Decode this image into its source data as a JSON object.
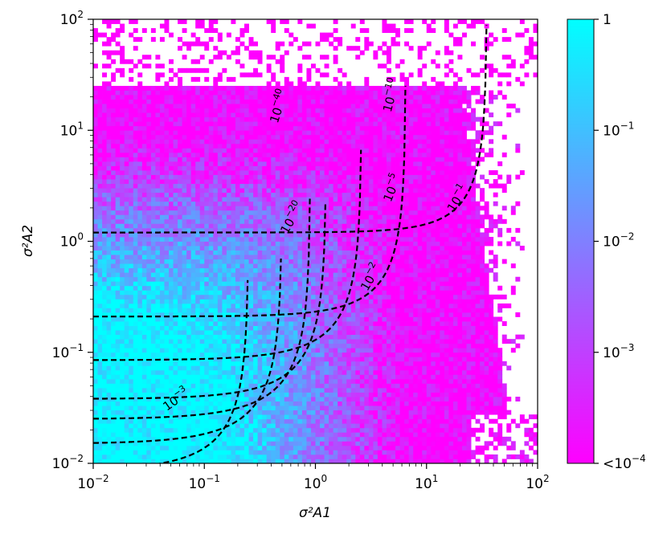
{
  "chart_data": {
    "type": "heatmap",
    "x_axis": {
      "label": "σ²A1",
      "scale": "log",
      "range": [
        0.01,
        100
      ],
      "ticks": [
        {
          "value": 0.01,
          "base": "10",
          "exp": "−2"
        },
        {
          "value": 0.1,
          "base": "10",
          "exp": "−1"
        },
        {
          "value": 1,
          "base": "10",
          "exp": "0"
        },
        {
          "value": 10,
          "base": "10",
          "exp": "1"
        },
        {
          "value": 100,
          "base": "10",
          "exp": "2"
        }
      ]
    },
    "y_axis": {
      "label": "σ²A2",
      "scale": "log",
      "range": [
        0.01,
        100
      ],
      "ticks": [
        {
          "value": 0.01,
          "base": "10",
          "exp": "−2"
        },
        {
          "value": 0.1,
          "base": "10",
          "exp": "−1"
        },
        {
          "value": 1,
          "base": "10",
          "exp": "0"
        },
        {
          "value": 10,
          "base": "10",
          "exp": "1"
        },
        {
          "value": 100,
          "base": "10",
          "exp": "2"
        }
      ]
    },
    "colorbar": {
      "scale": "log",
      "range": [
        0.0001,
        1
      ],
      "color_low": "#ff00ff",
      "color_high": "#00ffff",
      "ticks": [
        {
          "value": 1,
          "text": "1",
          "base": "",
          "exp": ""
        },
        {
          "value": 0.1,
          "text": "",
          "base": "10",
          "exp": "−1"
        },
        {
          "value": 0.01,
          "text": "",
          "base": "10",
          "exp": "−2"
        },
        {
          "value": 0.001,
          "text": "",
          "base": "10",
          "exp": "−3"
        },
        {
          "value": 0.0001,
          "text": "<",
          "base": "10",
          "exp": "−4"
        }
      ]
    },
    "contours": [
      {
        "level": 1e-40,
        "base": "10",
        "exp": "−40",
        "a": 35,
        "b": 1.45,
        "y_at_x001": 1.2
      },
      {
        "level": 1e-20,
        "base": "10",
        "exp": "−20",
        "a": 6.5,
        "b": 1.25,
        "y_at_x001": 0.21
      },
      {
        "level": 1e-10,
        "base": "10",
        "exp": "−10",
        "a": 2.6,
        "b": 1.12,
        "y_at_x001": 0.085
      },
      {
        "level": 1e-05,
        "base": "10",
        "exp": "−5",
        "a": 1.25,
        "b": 1.1,
        "y_at_x001": 0.038
      },
      {
        "level": 0.001,
        "base": "10",
        "exp": "−3",
        "a": 0.9,
        "b": 1.05,
        "y_at_x001": 0.025
      },
      {
        "level": 0.01,
        "base": "10",
        "exp": "−2",
        "a": 0.5,
        "b": 1.05,
        "y_at_x001": 0.015
      },
      {
        "level": 0.1,
        "base": "10",
        "exp": "−1",
        "a": 0.25,
        "b": 1.05,
        "y_at_x001": 0.0085
      }
    ],
    "grid": false,
    "colors": {
      "magenta": "#ff00ff",
      "cyan": "#00ffff",
      "contour": "#000000"
    }
  }
}
